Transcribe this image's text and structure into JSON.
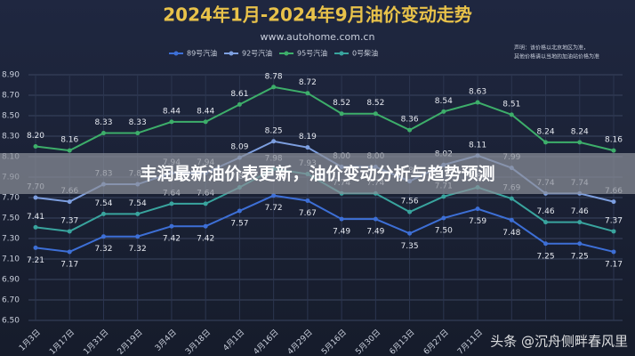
{
  "chart_data": {
    "type": "line",
    "title": "2024年1月-2024年9月油价变动走势",
    "subtitle": "www.autohome.com.cn",
    "note": [
      "声明：该价格以北京地区为准，",
      "其他价格请以当地的加油站价格为准"
    ],
    "categories": [
      "1月3日",
      "1月17日",
      "1月31日",
      "2月19日",
      "3月4日",
      "3月18日",
      "4月1日",
      "4月16日",
      "4月29日",
      "5月16日",
      "5月30日",
      "6月13日",
      "6月27日",
      "7月11日",
      null,
      null,
      null,
      null
    ],
    "ylim": [
      6.5,
      8.9
    ],
    "yticks": [
      {
        "value": 6.5,
        "label": "6.50"
      },
      {
        "value": 6.7,
        "label": "6.70"
      },
      {
        "value": 6.9,
        "label": "6.90"
      },
      {
        "value": 7.1,
        "label": "7.10"
      },
      {
        "value": 7.3,
        "label": "7.30"
      },
      {
        "value": 7.5,
        "label": "7.50"
      },
      {
        "value": 7.7,
        "label": "7.70"
      },
      {
        "value": 7.9,
        "label": "7.90"
      },
      {
        "value": 8.1,
        "label": "8.10"
      },
      {
        "value": 8.3,
        "label": "8.30"
      },
      {
        "value": 8.5,
        "label": "8.50"
      },
      {
        "value": 8.7,
        "label": "8.70"
      },
      {
        "value": 8.9,
        "label": "8.90"
      }
    ],
    "grid": true,
    "series": [
      {
        "name": "89号汽油",
        "color": "#3d6fd6",
        "label_side": "below",
        "values": [
          7.21,
          7.17,
          7.32,
          7.32,
          7.42,
          7.42,
          7.57,
          7.72,
          7.67,
          7.49,
          7.49,
          7.35,
          7.5,
          7.59,
          7.48,
          7.25,
          7.25,
          7.17
        ],
        "value_labels": [
          "7.21",
          "7.17",
          "7.32",
          "7.32",
          "7.42",
          "7.42",
          "7.57",
          "7.72",
          "7.67",
          "7.49",
          "7.49",
          "7.35",
          "7.50",
          "7.59",
          "7.48",
          "7.25",
          "7.25",
          "7.17"
        ]
      },
      {
        "name": "92号汽油",
        "color": "#7d9fe0",
        "label_side": "above",
        "values": [
          7.7,
          7.66,
          7.83,
          7.83,
          7.94,
          7.94,
          8.09,
          8.25,
          8.19,
          8.0,
          8.0,
          7.86,
          8.02,
          8.11,
          7.99,
          7.74,
          7.74,
          7.66
        ],
        "value_labels": [
          "7.70",
          "7.66",
          "7.83",
          "7.83",
          "7.94",
          "7.94",
          "8.09",
          "8.25",
          "8.19",
          "8.00",
          "8.00",
          "7.86",
          "8.02",
          "8.11",
          "7.99",
          "7.74",
          "7.74",
          "7.66"
        ]
      },
      {
        "name": "95号汽油",
        "color": "#3dae6a",
        "label_side": "above",
        "values": [
          8.2,
          8.16,
          8.33,
          8.33,
          8.44,
          8.44,
          8.61,
          8.78,
          8.72,
          8.52,
          8.52,
          8.36,
          8.54,
          8.63,
          8.51,
          8.24,
          8.24,
          8.16
        ],
        "value_labels": [
          "8.20",
          "8.16",
          "8.33",
          "8.33",
          "8.44",
          "8.44",
          "8.61",
          "8.78",
          "8.72",
          "8.52",
          "8.52",
          "8.36",
          "8.54",
          "8.63",
          "8.51",
          "8.24",
          "8.24",
          "8.16"
        ]
      },
      {
        "name": "0号柴油",
        "color": "#39a49e",
        "label_side": "above",
        "values": [
          7.41,
          7.37,
          7.54,
          7.54,
          7.64,
          7.64,
          7.8,
          7.98,
          7.93,
          7.74,
          7.74,
          7.56,
          7.71,
          7.8,
          7.69,
          7.46,
          7.46,
          7.37
        ],
        "value_labels": [
          "7.41",
          "7.37",
          "7.54",
          "7.54",
          "7.64",
          "7.64",
          "7.80",
          "7.98",
          "7.93",
          "7.74",
          "7.74",
          "7.56",
          "7.71",
          "7.80",
          "7.69",
          "7.46",
          "7.46",
          "7.37"
        ]
      }
    ]
  },
  "banner": "丰润最新油价表更新，油价变动分析与趋势预测",
  "watermark": "头条 @沉舟侧畔春风里"
}
